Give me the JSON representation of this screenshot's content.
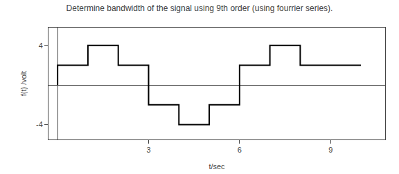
{
  "chart_data": {
    "type": "line",
    "title": "Determine bandwidth of the signal using 9th order (using fourrier series).",
    "x_label": "t/sec",
    "y_label": "f(t) /volt",
    "x": [
      0,
      0,
      1,
      1,
      2,
      2,
      3,
      3,
      4,
      4,
      5,
      5,
      6,
      6,
      7,
      7,
      8,
      8,
      9,
      9,
      10
    ],
    "values": [
      0,
      2,
      2,
      4,
      4,
      2,
      2,
      -2,
      -2,
      -4,
      -4,
      -2,
      -2,
      2,
      2,
      4,
      4,
      2,
      2,
      2,
      2
    ],
    "color": "#000000",
    "xlim": [
      -0.3,
      10.8
    ],
    "ylim": [
      -5.5,
      5.8
    ],
    "xticks": [
      3,
      6,
      9
    ],
    "yticks": [
      4,
      -4
    ],
    "grid": false
  }
}
